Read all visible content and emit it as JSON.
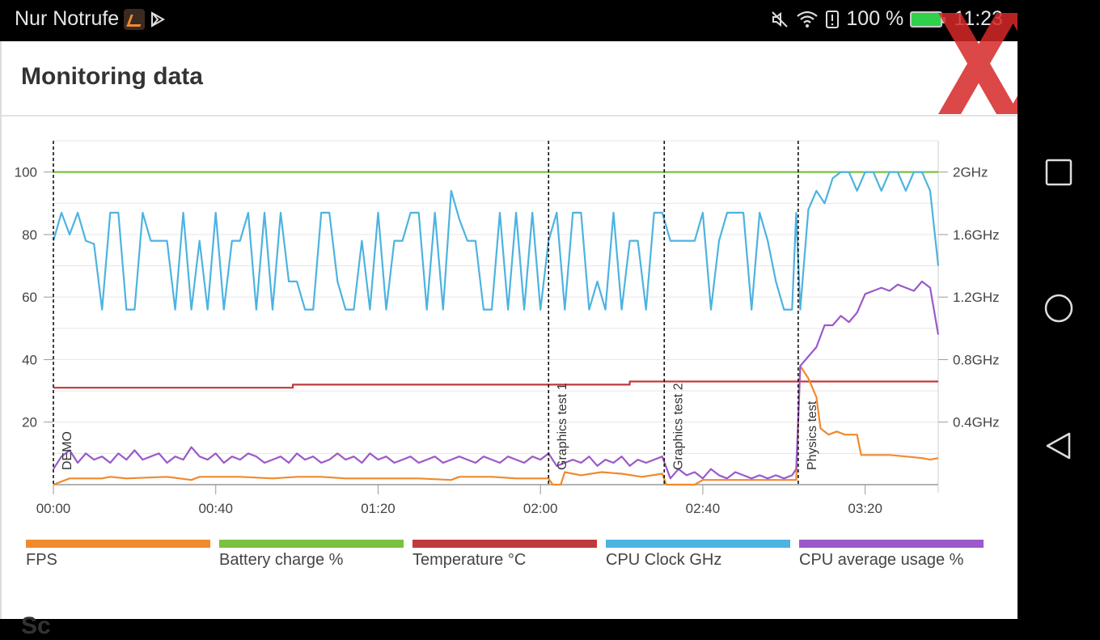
{
  "status_bar": {
    "carrier": "Nur Notrufe",
    "battery": "100 %",
    "time": "11:23"
  },
  "header": {
    "title": "Monitoring data"
  },
  "section_next": "Sc",
  "nav": {
    "recent_icon": "square-icon",
    "home_icon": "circle-icon",
    "back_icon": "triangle-back-icon"
  },
  "colors": {
    "fps": "#f08a2c",
    "battery": "#7bc043",
    "temperature": "#c0393b",
    "cpu_clock": "#4db3e0",
    "cpu_usage": "#9b59c9"
  },
  "legend": [
    "FPS",
    "Battery charge %",
    "Temperature °C",
    "CPU Clock GHz",
    "CPU average usage %"
  ],
  "chart_data": {
    "type": "line",
    "x_ticks": [
      "00:00",
      "00:40",
      "01:20",
      "02:00",
      "02:40",
      "03:20"
    ],
    "x_range_seconds": [
      0,
      218
    ],
    "y_left_ticks": [
      "100",
      "80",
      "60",
      "40",
      "20"
    ],
    "y_left_range": [
      0,
      110
    ],
    "y_right_ticks": [
      "2GHz",
      "1.6GHz",
      "1.2GHz",
      "0.8GHz",
      "0.4GHz"
    ],
    "y_right_range": [
      0,
      2.2
    ],
    "markers": [
      {
        "label": "DEMO",
        "t": 0
      },
      {
        "label": "Graphics test 1",
        "t": 122
      },
      {
        "label": "Graphics test 2",
        "t": 150.5
      },
      {
        "label": "Physics test",
        "t": 183.5
      }
    ],
    "series": [
      {
        "name": "Battery charge %",
        "axis": "left",
        "points": [
          [
            0,
            100
          ],
          [
            218,
            100
          ]
        ]
      },
      {
        "name": "Temperature °C",
        "axis": "left",
        "points": [
          [
            0,
            31
          ],
          [
            59,
            31
          ],
          [
            59,
            32
          ],
          [
            142,
            32
          ],
          [
            142,
            33
          ],
          [
            218,
            33
          ]
        ]
      },
      {
        "name": "FPS",
        "axis": "left",
        "points": [
          [
            0,
            0
          ],
          [
            4,
            2
          ],
          [
            12,
            2
          ],
          [
            14,
            2.5
          ],
          [
            18,
            2
          ],
          [
            28,
            2.5
          ],
          [
            34,
            1.5
          ],
          [
            36,
            2.5
          ],
          [
            46,
            2.5
          ],
          [
            54,
            2
          ],
          [
            60,
            2.5
          ],
          [
            66,
            2.5
          ],
          [
            72,
            2
          ],
          [
            80,
            2
          ],
          [
            90,
            2
          ],
          [
            98,
            1.5
          ],
          [
            100,
            2.5
          ],
          [
            108,
            2.5
          ],
          [
            114,
            2
          ],
          [
            122,
            2
          ],
          [
            123,
            0
          ],
          [
            125,
            0
          ],
          [
            126,
            4
          ],
          [
            130,
            3
          ],
          [
            135,
            4
          ],
          [
            140,
            3.5
          ],
          [
            145,
            2.5
          ],
          [
            150,
            3.5
          ],
          [
            151,
            0
          ],
          [
            158,
            0
          ],
          [
            160,
            1.5
          ],
          [
            170,
            1.5
          ],
          [
            180,
            1.5
          ],
          [
            183,
            1.5
          ],
          [
            184,
            38
          ],
          [
            186,
            34
          ],
          [
            188,
            28
          ],
          [
            189,
            18
          ],
          [
            191,
            16
          ],
          [
            193,
            17
          ],
          [
            195,
            16
          ],
          [
            198,
            16
          ],
          [
            199,
            9.5
          ],
          [
            202,
            9.5
          ],
          [
            206,
            9.5
          ],
          [
            210,
            9
          ],
          [
            214,
            8.5
          ],
          [
            216,
            8
          ],
          [
            218,
            8.5
          ]
        ]
      },
      {
        "name": "CPU Clock GHz",
        "axis": "right",
        "points": [
          [
            0,
            1.56
          ],
          [
            2,
            1.74
          ],
          [
            4,
            1.6
          ],
          [
            6,
            1.74
          ],
          [
            8,
            1.56
          ],
          [
            10,
            1.54
          ],
          [
            12,
            1.12
          ],
          [
            14,
            1.74
          ],
          [
            16,
            1.74
          ],
          [
            18,
            1.12
          ],
          [
            20,
            1.12
          ],
          [
            22,
            1.74
          ],
          [
            24,
            1.56
          ],
          [
            26,
            1.56
          ],
          [
            28,
            1.56
          ],
          [
            30,
            1.12
          ],
          [
            32,
            1.74
          ],
          [
            34,
            1.12
          ],
          [
            36,
            1.56
          ],
          [
            38,
            1.12
          ],
          [
            40,
            1.74
          ],
          [
            42,
            1.12
          ],
          [
            44,
            1.56
          ],
          [
            46,
            1.56
          ],
          [
            48,
            1.74
          ],
          [
            50,
            1.12
          ],
          [
            52,
            1.74
          ],
          [
            54,
            1.12
          ],
          [
            56,
            1.74
          ],
          [
            58,
            1.3
          ],
          [
            60,
            1.3
          ],
          [
            62,
            1.12
          ],
          [
            64,
            1.12
          ],
          [
            66,
            1.74
          ],
          [
            68,
            1.74
          ],
          [
            70,
            1.3
          ],
          [
            72,
            1.12
          ],
          [
            74,
            1.12
          ],
          [
            76,
            1.56
          ],
          [
            78,
            1.12
          ],
          [
            80,
            1.74
          ],
          [
            82,
            1.12
          ],
          [
            84,
            1.56
          ],
          [
            86,
            1.56
          ],
          [
            88,
            1.74
          ],
          [
            90,
            1.74
          ],
          [
            92,
            1.12
          ],
          [
            94,
            1.74
          ],
          [
            96,
            1.12
          ],
          [
            98,
            1.88
          ],
          [
            100,
            1.7
          ],
          [
            102,
            1.56
          ],
          [
            104,
            1.56
          ],
          [
            106,
            1.12
          ],
          [
            108,
            1.12
          ],
          [
            110,
            1.74
          ],
          [
            112,
            1.12
          ],
          [
            114,
            1.74
          ],
          [
            116,
            1.12
          ],
          [
            118,
            1.74
          ],
          [
            120,
            1.12
          ],
          [
            122,
            1.56
          ],
          [
            124,
            1.74
          ],
          [
            126,
            1.12
          ],
          [
            128,
            1.74
          ],
          [
            130,
            1.74
          ],
          [
            132,
            1.12
          ],
          [
            134,
            1.3
          ],
          [
            136,
            1.12
          ],
          [
            138,
            1.74
          ],
          [
            140,
            1.12
          ],
          [
            142,
            1.56
          ],
          [
            144,
            1.56
          ],
          [
            146,
            1.12
          ],
          [
            148,
            1.74
          ],
          [
            150,
            1.74
          ],
          [
            152,
            1.56
          ],
          [
            154,
            1.56
          ],
          [
            156,
            1.56
          ],
          [
            158,
            1.56
          ],
          [
            160,
            1.74
          ],
          [
            162,
            1.12
          ],
          [
            164,
            1.56
          ],
          [
            166,
            1.74
          ],
          [
            168,
            1.74
          ],
          [
            170,
            1.74
          ],
          [
            172,
            1.12
          ],
          [
            174,
            1.74
          ],
          [
            176,
            1.56
          ],
          [
            178,
            1.3
          ],
          [
            180,
            1.12
          ],
          [
            182,
            1.12
          ],
          [
            183,
            1.74
          ],
          [
            184,
            1.12
          ],
          [
            186,
            1.76
          ],
          [
            188,
            1.88
          ],
          [
            190,
            1.8
          ],
          [
            192,
            1.96
          ],
          [
            194,
            2.0
          ],
          [
            196,
            2.0
          ],
          [
            198,
            1.88
          ],
          [
            200,
            2.0
          ],
          [
            202,
            2.0
          ],
          [
            204,
            1.88
          ],
          [
            206,
            2.0
          ],
          [
            208,
            2.0
          ],
          [
            210,
            1.88
          ],
          [
            212,
            2.0
          ],
          [
            214,
            2.0
          ],
          [
            216,
            1.88
          ],
          [
            218,
            1.4
          ]
        ]
      },
      {
        "name": "CPU average usage %",
        "axis": "left",
        "points": [
          [
            0,
            5
          ],
          [
            2,
            9
          ],
          [
            4,
            11
          ],
          [
            6,
            7
          ],
          [
            8,
            10
          ],
          [
            10,
            8
          ],
          [
            12,
            9
          ],
          [
            14,
            7
          ],
          [
            16,
            10
          ],
          [
            18,
            8
          ],
          [
            20,
            11
          ],
          [
            22,
            8
          ],
          [
            24,
            9
          ],
          [
            26,
            10
          ],
          [
            28,
            7
          ],
          [
            30,
            9
          ],
          [
            32,
            8
          ],
          [
            34,
            12
          ],
          [
            36,
            9
          ],
          [
            38,
            8
          ],
          [
            40,
            10
          ],
          [
            42,
            7
          ],
          [
            44,
            9
          ],
          [
            46,
            8
          ],
          [
            48,
            10
          ],
          [
            50,
            9
          ],
          [
            52,
            7
          ],
          [
            54,
            8
          ],
          [
            56,
            9
          ],
          [
            58,
            7
          ],
          [
            60,
            10
          ],
          [
            62,
            8
          ],
          [
            64,
            9
          ],
          [
            66,
            7
          ],
          [
            68,
            8
          ],
          [
            70,
            10
          ],
          [
            72,
            8
          ],
          [
            74,
            9
          ],
          [
            76,
            7
          ],
          [
            78,
            10
          ],
          [
            80,
            8
          ],
          [
            82,
            9
          ],
          [
            84,
            7
          ],
          [
            86,
            8
          ],
          [
            88,
            9
          ],
          [
            90,
            7
          ],
          [
            92,
            8
          ],
          [
            94,
            9
          ],
          [
            96,
            7
          ],
          [
            98,
            8
          ],
          [
            100,
            9
          ],
          [
            102,
            8
          ],
          [
            104,
            7
          ],
          [
            106,
            9
          ],
          [
            108,
            8
          ],
          [
            110,
            7
          ],
          [
            112,
            9
          ],
          [
            114,
            8
          ],
          [
            116,
            7
          ],
          [
            118,
            9
          ],
          [
            120,
            8
          ],
          [
            122,
            10
          ],
          [
            124,
            6
          ],
          [
            126,
            7
          ],
          [
            128,
            8
          ],
          [
            130,
            7
          ],
          [
            132,
            9
          ],
          [
            134,
            6
          ],
          [
            136,
            8
          ],
          [
            138,
            7
          ],
          [
            140,
            9
          ],
          [
            142,
            6
          ],
          [
            144,
            8
          ],
          [
            146,
            7
          ],
          [
            148,
            8
          ],
          [
            150,
            9
          ],
          [
            152,
            2
          ],
          [
            154,
            5
          ],
          [
            156,
            3
          ],
          [
            158,
            4
          ],
          [
            160,
            2
          ],
          [
            162,
            5
          ],
          [
            164,
            3
          ],
          [
            166,
            2
          ],
          [
            168,
            4
          ],
          [
            170,
            3
          ],
          [
            172,
            2
          ],
          [
            174,
            3
          ],
          [
            176,
            2
          ],
          [
            178,
            3
          ],
          [
            180,
            2
          ],
          [
            182,
            3
          ],
          [
            183,
            5
          ],
          [
            184,
            38
          ],
          [
            186,
            41
          ],
          [
            188,
            44
          ],
          [
            190,
            51
          ],
          [
            192,
            51
          ],
          [
            194,
            54
          ],
          [
            196,
            52
          ],
          [
            198,
            55
          ],
          [
            200,
            61
          ],
          [
            202,
            62
          ],
          [
            204,
            63
          ],
          [
            206,
            62
          ],
          [
            208,
            64
          ],
          [
            210,
            63
          ],
          [
            212,
            62
          ],
          [
            214,
            65
          ],
          [
            216,
            63
          ],
          [
            218,
            48
          ]
        ]
      }
    ]
  }
}
